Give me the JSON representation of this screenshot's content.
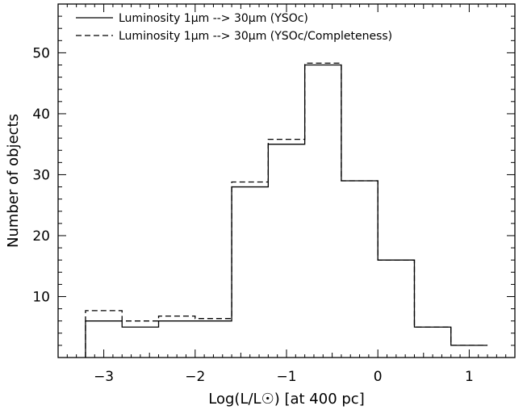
{
  "chart_data": {
    "type": "histogram",
    "title": "",
    "xlabel": "Log(L/L☉) [at 400 pc]",
    "ylabel": "Number of objects",
    "xlim": [
      -3.5,
      1.5
    ],
    "ylim": [
      0,
      58
    ],
    "x_ticks": [
      -3,
      -2,
      -1,
      0,
      1
    ],
    "x_tick_labels": [
      "−3",
      "−2",
      "−1",
      "0",
      "1"
    ],
    "y_ticks": [
      10,
      20,
      30,
      40,
      50
    ],
    "y_tick_labels": [
      "10",
      "20",
      "30",
      "40",
      "50"
    ],
    "legend_position": "top-left",
    "bin_edges": [
      -3.2,
      -2.8,
      -2.4,
      -2.0,
      -1.6,
      -1.2,
      -0.8,
      -0.4,
      0.0,
      0.4,
      0.8,
      1.2
    ],
    "series": [
      {
        "name": "Luminosity 1μm --> 30μm (YSOc)",
        "line_style": "solid",
        "values": [
          6,
          5,
          6,
          6,
          28,
          35,
          48,
          29,
          16,
          5,
          2
        ]
      },
      {
        "name": "Luminosity 1μm --> 30μm (YSOc/Completeness)",
        "line_style": "dashed",
        "values": [
          7.7,
          6,
          6.8,
          6.4,
          28.8,
          35.8,
          48.3,
          29,
          16,
          5,
          2
        ]
      }
    ]
  }
}
